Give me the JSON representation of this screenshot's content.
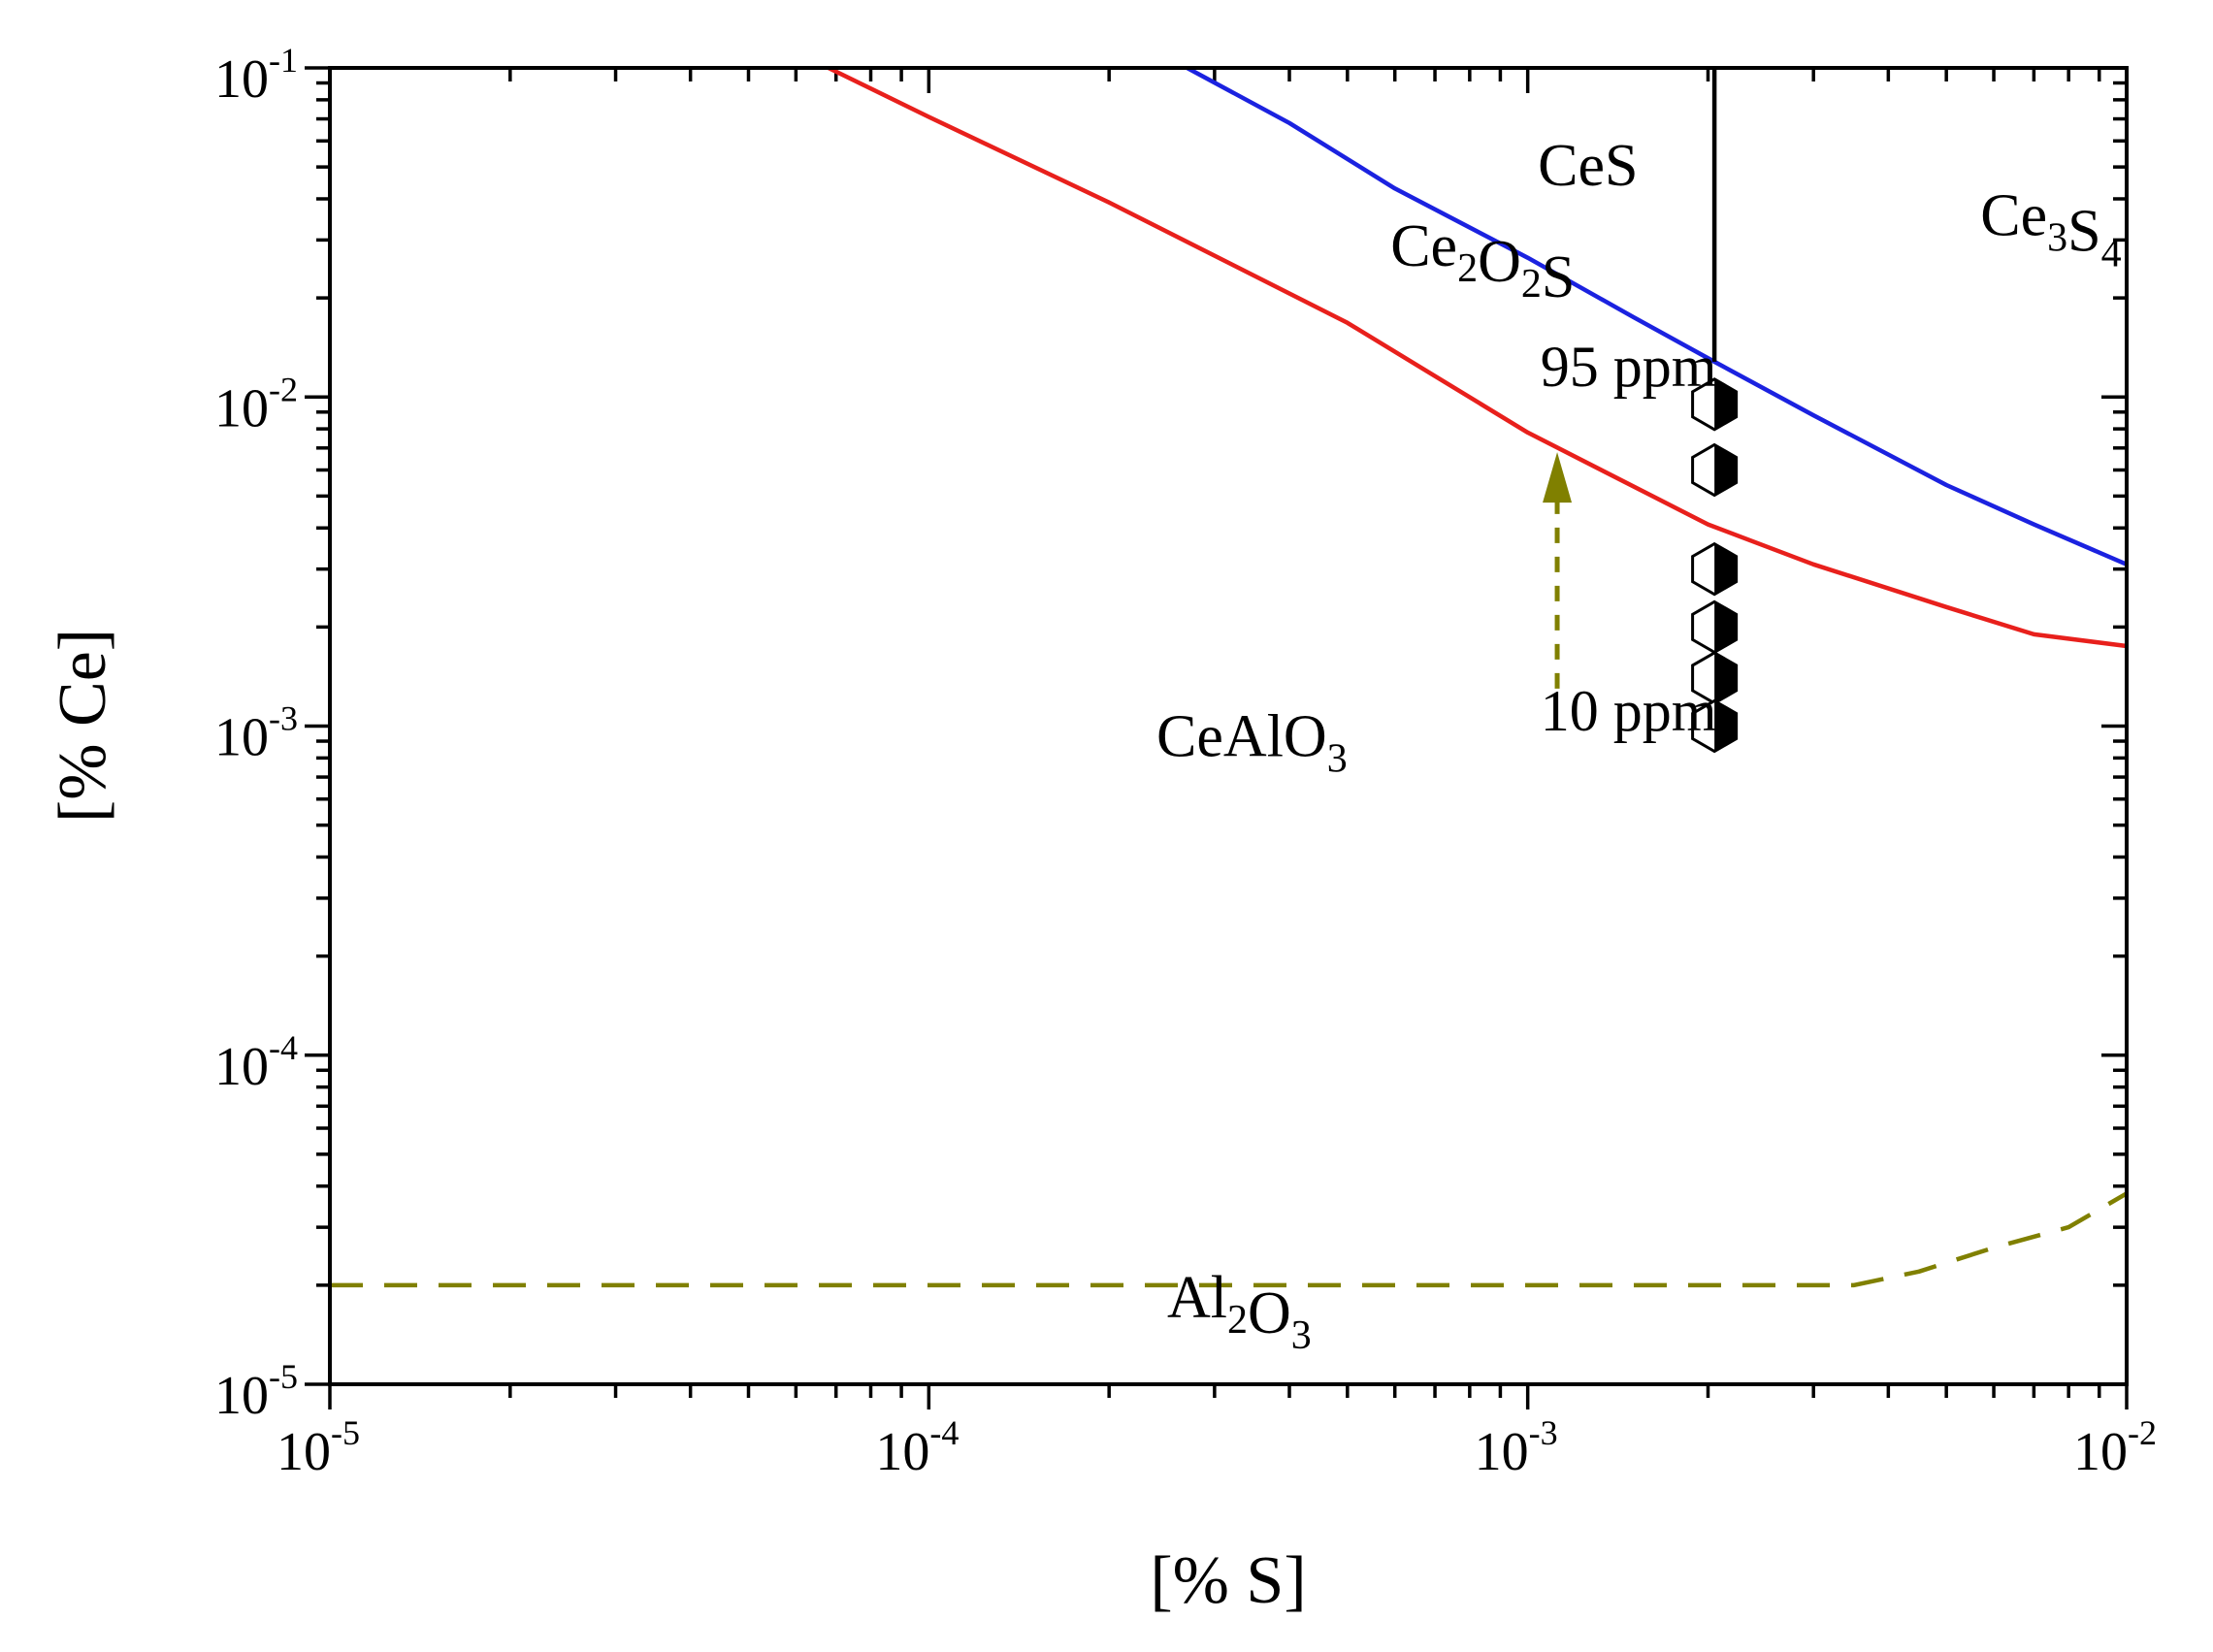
{
  "chart_data": {
    "type": "line",
    "xscale": "log",
    "yscale": "log",
    "xlabel": "[% S]",
    "ylabel": "[% Ce]",
    "xlim": [
      1e-05,
      0.01
    ],
    "ylim": [
      1e-05,
      0.1
    ],
    "x_ticks": [
      {
        "base": "10",
        "exp": "-5"
      },
      {
        "base": "10",
        "exp": "-4"
      },
      {
        "base": "10",
        "exp": "-3"
      },
      {
        "base": "10",
        "exp": "-2"
      }
    ],
    "y_ticks": [
      {
        "base": "10",
        "exp": "-5"
      },
      {
        "base": "10",
        "exp": "-4"
      },
      {
        "base": "10",
        "exp": "-3"
      },
      {
        "base": "10",
        "exp": "-2"
      },
      {
        "base": "10",
        "exp": "-1"
      }
    ],
    "series": [
      {
        "name": "CeAlO3 / Ce2O2S boundary",
        "color": "#e8201c",
        "style": "solid",
        "x": [
          6.8e-05,
          0.0001,
          0.0002,
          0.0005,
          0.001,
          0.002,
          0.003,
          0.005,
          0.007,
          0.01
        ],
        "y": [
          0.1,
          0.071,
          0.039,
          0.0168,
          0.0078,
          0.0041,
          0.0031,
          0.0023,
          0.0019,
          0.00175
        ]
      },
      {
        "name": "Ce2O2S / CeS boundary",
        "color": "#1b22e0",
        "style": "solid",
        "x": [
          0.00027,
          0.0004,
          0.0006,
          0.001,
          0.0015,
          0.00205,
          0.003,
          0.005,
          0.007,
          0.01
        ],
        "y": [
          0.1,
          0.068,
          0.043,
          0.0265,
          0.0175,
          0.0128,
          0.0088,
          0.0054,
          0.0041,
          0.0031
        ]
      },
      {
        "name": "CeS / Ce3S4 boundary",
        "color": "#000000",
        "style": "solid",
        "x": [
          0.00205,
          0.00205
        ],
        "y": [
          0.0128,
          0.1
        ]
      },
      {
        "name": "Al2O3 / CeAlO3 boundary",
        "color": "#808000",
        "style": "dashed",
        "x": [
          1e-05,
          0.0001,
          0.001,
          0.0035,
          0.0045,
          0.006,
          0.008,
          0.01
        ],
        "y": [
          2e-05,
          2e-05,
          2e-05,
          2e-05,
          2.2e-05,
          2.6e-05,
          3e-05,
          3.8e-05
        ]
      }
    ],
    "markers": {
      "shape": "hexagon",
      "x": 0.00205,
      "y": [
        0.0095,
        0.006,
        0.003,
        0.002,
        0.0014,
        0.001
      ]
    },
    "arrow": {
      "color": "#808000",
      "style": "dashed",
      "x": 0.00112,
      "y_from": 0.0013,
      "y_to": 0.0068
    },
    "region_labels": [
      {
        "text": "CeS",
        "x": 0.00104,
        "y": 0.044,
        "sub": []
      },
      {
        "text": "Ce3S4",
        "x": 0.0057,
        "y": 0.031,
        "sub": [
          "3",
          "4"
        ]
      },
      {
        "text": "Ce2O2S",
        "x": 0.00059,
        "y": 0.025,
        "sub": [
          "2",
          "2"
        ]
      },
      {
        "text": "CeAlO3",
        "x": 0.00024,
        "y": 0.00081,
        "sub": [
          "3"
        ]
      },
      {
        "text": "Al2O3",
        "x": 0.00025,
        "y": 1.6e-05,
        "sub": [
          "2",
          "3"
        ]
      }
    ],
    "annotations": [
      {
        "text": "95 ppm",
        "x": 0.00105,
        "y": 0.0108
      },
      {
        "text": "10 ppm",
        "x": 0.00105,
        "y": 0.00097
      }
    ]
  }
}
